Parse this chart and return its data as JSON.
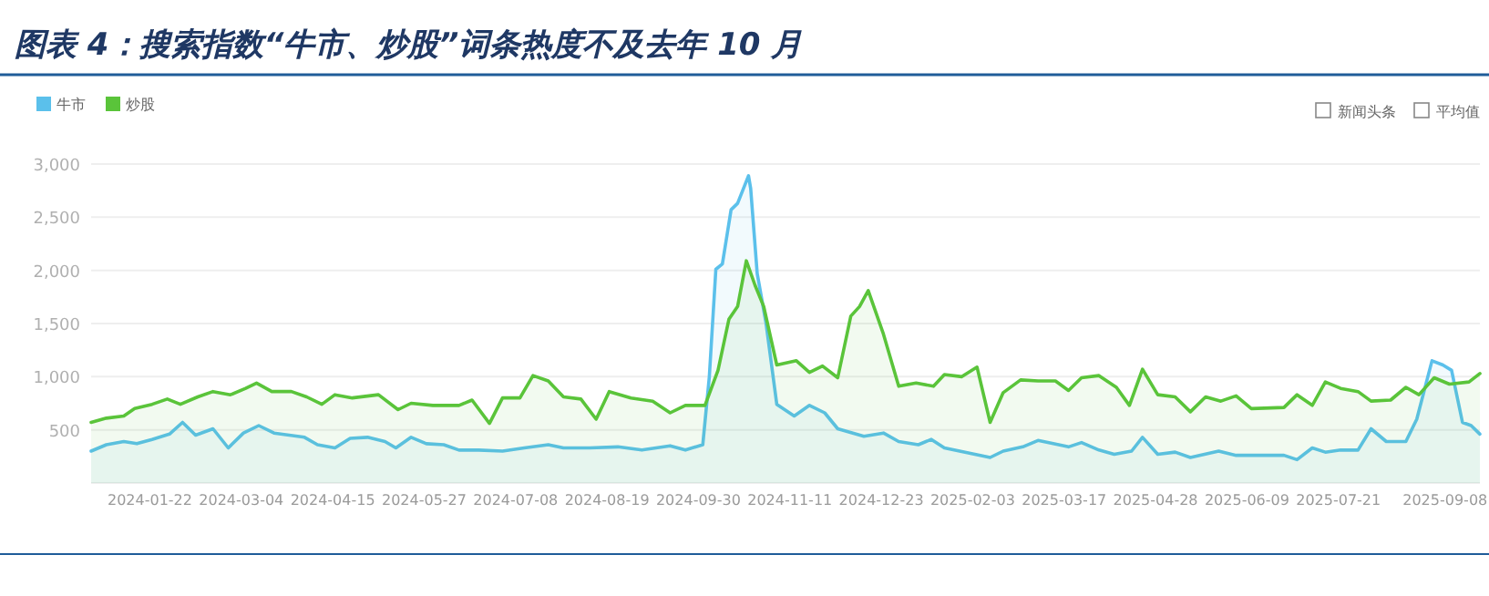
{
  "chart_data": {
    "type": "area",
    "title": "图表 4：搜索指数“牛市、炒股”词条热度不及去年 10 月",
    "annotations": [
      "新闻头条",
      "平均值"
    ],
    "xlim": [
      "2023-12-26",
      "2025-09-24"
    ],
    "xticks": [
      "2024-01-22",
      "2024-03-04",
      "2024-04-15",
      "2024-05-27",
      "2024-07-08",
      "2024-08-19",
      "2024-09-30",
      "2024-11-11",
      "2024-12-23",
      "2025-02-03",
      "2025-03-17",
      "2025-04-28",
      "2025-06-09",
      "2025-07-21",
      "2025-09-08"
    ],
    "ylim": [
      0,
      3000
    ],
    "yticks": [
      {
        "value": 0,
        "label": null
      },
      {
        "value": 500,
        "label": "500"
      },
      {
        "value": 1000,
        "label": "1,000"
      },
      {
        "value": 1500,
        "label": "1,500"
      },
      {
        "value": 2000,
        "label": "2,000"
      },
      {
        "value": 2500,
        "label": "2,500"
      },
      {
        "value": 3000,
        "label": "3,000"
      }
    ],
    "grid": "y",
    "legend": "top left",
    "marker": "none",
    "series": [
      {
        "name": "牛市",
        "color": "#5bc0eb",
        "x": [
          "2023-12-26",
          "2024-01-02",
          "2024-01-10",
          "2024-01-16",
          "2024-01-23",
          "2024-01-31",
          "2024-02-06",
          "2024-02-12",
          "2024-02-20",
          "2024-02-27",
          "2024-03-05",
          "2024-03-12",
          "2024-03-19",
          "2024-04-02",
          "2024-04-08",
          "2024-04-16",
          "2024-04-23",
          "2024-05-01",
          "2024-05-09",
          "2024-05-14",
          "2024-05-21",
          "2024-05-28",
          "2024-06-05",
          "2024-06-12",
          "2024-06-21",
          "2024-07-02",
          "2024-07-12",
          "2024-07-23",
          "2024-07-30",
          "2024-08-11",
          "2024-08-24",
          "2024-09-04",
          "2024-09-17",
          "2024-09-24",
          "2024-10-02",
          "2024-10-05",
          "2024-10-08",
          "2024-10-11",
          "2024-10-15",
          "2024-10-18",
          "2024-10-23",
          "2024-10-24",
          "2024-10-27",
          "2024-10-31",
          "2024-11-05",
          "2024-11-13",
          "2024-11-20",
          "2024-11-27",
          "2024-12-03",
          "2024-12-15",
          "2024-12-24",
          "2024-12-31",
          "2025-01-09",
          "2025-01-15",
          "2025-01-21",
          "2025-02-04",
          "2025-02-11",
          "2025-02-17",
          "2025-02-26",
          "2025-03-05",
          "2025-03-19",
          "2025-03-25",
          "2025-04-02",
          "2025-04-09",
          "2025-04-17",
          "2025-04-22",
          "2025-04-29",
          "2025-05-07",
          "2025-05-14",
          "2025-05-27",
          "2025-06-04",
          "2025-06-26",
          "2025-07-02",
          "2025-07-09",
          "2025-07-15",
          "2025-07-22",
          "2025-07-30",
          "2025-08-05",
          "2025-08-12",
          "2025-08-21",
          "2025-08-26",
          "2025-09-02",
          "2025-09-07",
          "2025-09-11",
          "2025-09-16",
          "2025-09-20",
          "2025-09-24"
        ],
        "values": [
          300,
          360,
          390,
          370,
          410,
          460,
          570,
          450,
          510,
          330,
          470,
          540,
          470,
          430,
          360,
          330,
          420,
          430,
          390,
          330,
          430,
          370,
          360,
          310,
          310,
          300,
          330,
          360,
          330,
          330,
          340,
          310,
          350,
          310,
          360,
          1000,
          2010,
          2060,
          2570,
          2630,
          2890,
          2770,
          1970,
          1510,
          740,
          630,
          730,
          660,
          510,
          440,
          470,
          390,
          360,
          410,
          330,
          270,
          240,
          300,
          340,
          400,
          340,
          380,
          310,
          270,
          300,
          430,
          270,
          290,
          240,
          300,
          260,
          260,
          220,
          330,
          290,
          310,
          310,
          510,
          390,
          390,
          600,
          1150,
          1110,
          1060,
          570,
          540,
          460
        ]
      },
      {
        "name": "炒股",
        "color": "#5ac43a",
        "x": [
          "2023-12-26",
          "2024-01-02",
          "2024-01-10",
          "2024-01-15",
          "2024-01-23",
          "2024-01-30",
          "2024-02-05",
          "2024-02-13",
          "2024-02-20",
          "2024-02-28",
          "2024-03-06",
          "2024-03-11",
          "2024-03-18",
          "2024-03-27",
          "2024-04-03",
          "2024-04-10",
          "2024-04-16",
          "2024-04-24",
          "2024-05-06",
          "2024-05-15",
          "2024-05-21",
          "2024-05-31",
          "2024-06-12",
          "2024-06-18",
          "2024-06-26",
          "2024-07-02",
          "2024-07-10",
          "2024-07-16",
          "2024-07-23",
          "2024-07-30",
          "2024-08-07",
          "2024-08-14",
          "2024-08-20",
          "2024-08-30",
          "2024-09-09",
          "2024-09-17",
          "2024-09-24",
          "2024-10-03",
          "2024-10-09",
          "2024-10-14",
          "2024-10-18",
          "2024-10-22",
          "2024-10-26",
          "2024-10-30",
          "2024-11-05",
          "2024-11-14",
          "2024-11-20",
          "2024-11-26",
          "2024-12-03",
          "2024-12-09",
          "2024-12-13",
          "2024-12-17",
          "2024-12-24",
          "2024-12-31",
          "2025-01-08",
          "2025-01-16",
          "2025-01-21",
          "2025-01-29",
          "2025-02-05",
          "2025-02-11",
          "2025-02-17",
          "2025-02-25",
          "2025-03-05",
          "2025-03-13",
          "2025-03-19",
          "2025-03-25",
          "2025-04-02",
          "2025-04-10",
          "2025-04-16",
          "2025-04-22",
          "2025-04-29",
          "2025-05-07",
          "2025-05-14",
          "2025-05-21",
          "2025-05-28",
          "2025-06-04",
          "2025-06-11",
          "2025-06-26",
          "2025-07-02",
          "2025-07-09",
          "2025-07-15",
          "2025-07-22",
          "2025-07-30",
          "2025-08-05",
          "2025-08-14",
          "2025-08-21",
          "2025-08-27",
          "2025-09-03",
          "2025-09-10",
          "2025-09-19",
          "2025-09-24"
        ],
        "values": [
          570,
          610,
          630,
          700,
          740,
          790,
          740,
          810,
          860,
          830,
          890,
          940,
          860,
          860,
          810,
          740,
          830,
          800,
          830,
          690,
          750,
          730,
          730,
          780,
          560,
          800,
          800,
          1010,
          960,
          810,
          790,
          600,
          860,
          800,
          770,
          660,
          730,
          730,
          1060,
          1540,
          1660,
          2090,
          1860,
          1660,
          1110,
          1150,
          1040,
          1100,
          990,
          1570,
          1660,
          1810,
          1400,
          910,
          940,
          910,
          1020,
          1000,
          1090,
          570,
          850,
          970,
          960,
          960,
          870,
          990,
          1010,
          900,
          730,
          1070,
          830,
          810,
          670,
          810,
          770,
          820,
          700,
          710,
          830,
          730,
          950,
          890,
          860,
          770,
          780,
          900,
          830,
          990,
          930,
          950,
          1030
        ]
      }
    ]
  }
}
